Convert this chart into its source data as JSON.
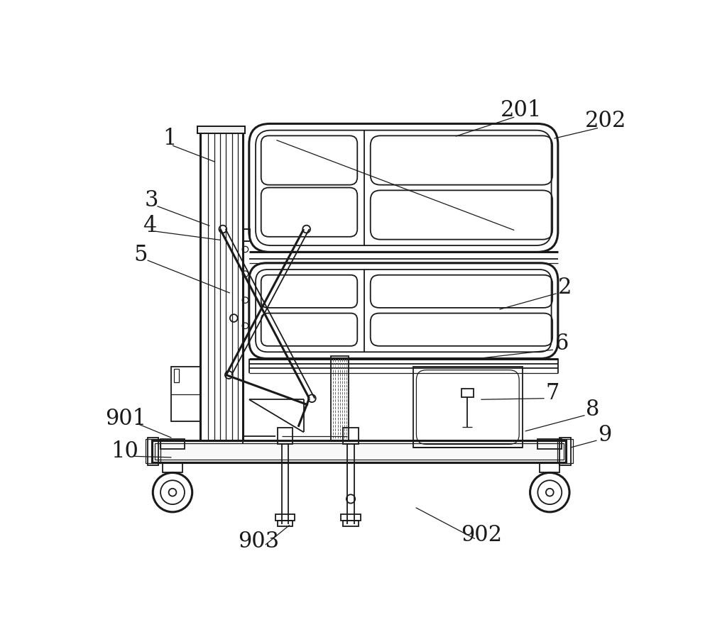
{
  "bg_color": "#ffffff",
  "lc": "#1a1a1a",
  "lw": 1.5,
  "lw_thin": 0.9,
  "lw_thick": 2.2,
  "lw_med": 1.3
}
